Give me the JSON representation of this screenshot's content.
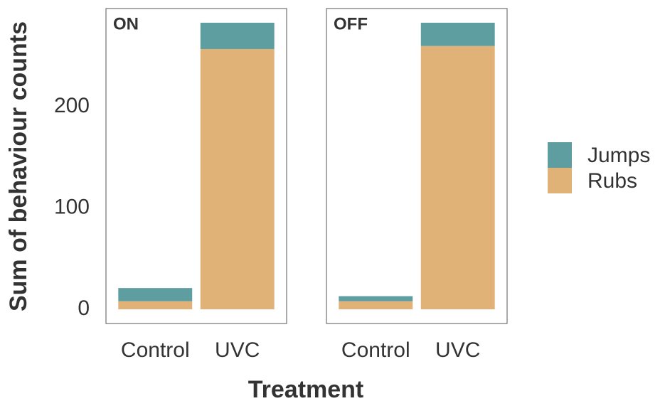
{
  "chart_data": {
    "type": "stacked_bar",
    "x_label": "Treatment",
    "y_label": "Sum of behaviour counts",
    "ylim": [
      -14,
      297
    ],
    "yticks": [
      0,
      100,
      200
    ],
    "grid": false,
    "legend_position": "right",
    "panels": [
      {
        "title": "ON",
        "categories": [
          "Control",
          "UVC"
        ],
        "series": [
          {
            "name": "Rubs",
            "color": "#e0b277",
            "values": [
              8,
              257
            ]
          },
          {
            "name": "Jumps",
            "color": "#5f9ea0",
            "values": [
              13,
              26
            ]
          }
        ]
      },
      {
        "title": "OFF",
        "categories": [
          "Control",
          "UVC"
        ],
        "series": [
          {
            "name": "Rubs",
            "color": "#e0b277",
            "values": [
              8,
              260
            ]
          },
          {
            "name": "Jumps",
            "color": "#5f9ea0",
            "values": [
              5,
              23
            ]
          }
        ]
      }
    ]
  }
}
